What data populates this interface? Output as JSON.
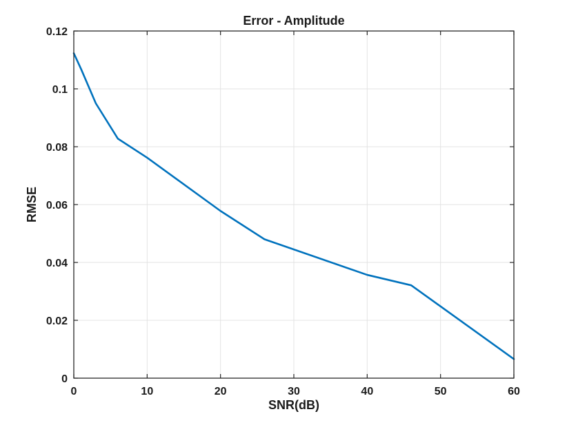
{
  "chart_data": {
    "type": "line",
    "title": "Error - Amplitude",
    "xlabel": "SNR(dB)",
    "ylabel": "RMSE",
    "xlim": [
      0,
      60
    ],
    "ylim": [
      0,
      0.12
    ],
    "xticks": [
      0,
      10,
      20,
      30,
      40,
      50,
      60
    ],
    "xtick_labels": [
      "0",
      "10",
      "20",
      "30",
      "40",
      "50",
      "60"
    ],
    "yticks": [
      0,
      0.02,
      0.04,
      0.06,
      0.08,
      0.1,
      0.12
    ],
    "ytick_labels": [
      "0",
      "0.02",
      "0.04",
      "0.06",
      "0.08",
      "0.1",
      "0.12"
    ],
    "grid": true,
    "series": [
      {
        "color": "#0072BD",
        "x": [
          0,
          1,
          3,
          6,
          10,
          20,
          26,
          40,
          46,
          60
        ],
        "y": [
          0.1123,
          0.1068,
          0.095,
          0.0828,
          0.0762,
          0.0578,
          0.048,
          0.0357,
          0.0321,
          0.0066
        ]
      }
    ]
  }
}
